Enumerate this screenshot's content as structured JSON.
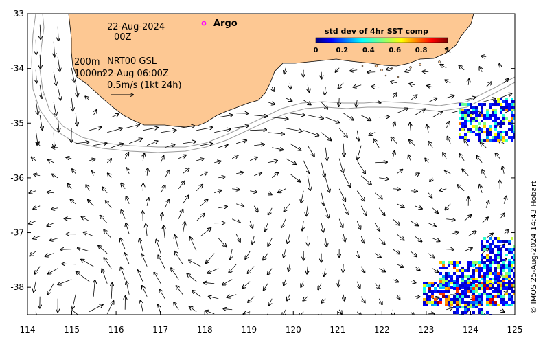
{
  "map": {
    "lon_range": [
      114,
      125
    ],
    "lat_range": [
      -38.5,
      -33
    ],
    "lon_ticks": [
      "114",
      "115",
      "116",
      "117",
      "118",
      "119",
      "120",
      "121",
      "122",
      "123",
      "124",
      "125"
    ],
    "lat_ticks": [
      "-33",
      "-34",
      "-35",
      "-36",
      "-37",
      "-38"
    ],
    "land_color": "#fdc893",
    "sea_color": "#ffffff",
    "isobath_color": "#9a9a9a",
    "arrow_color": "#000000"
  },
  "annotations": {
    "date": "22-Aug-2024",
    "time": "00Z",
    "depth_200": "200m",
    "depth_1000": "1000m",
    "product": "NRT00 GSL",
    "product_time": "22-Aug 06:00Z",
    "scale_label": "0.5m/s (1kt 24h)"
  },
  "argo": {
    "label": "Argo",
    "marker_color": "#ff00ff"
  },
  "colorbar": {
    "title": "std dev of 4hr SST comp",
    "ticks": [
      "0",
      "0.2",
      "0.4",
      "0.6",
      "0.8",
      "1"
    ],
    "colormap": "jet"
  },
  "credit": "© IMOS 25-Aug-2024 14:43 Hobart"
}
